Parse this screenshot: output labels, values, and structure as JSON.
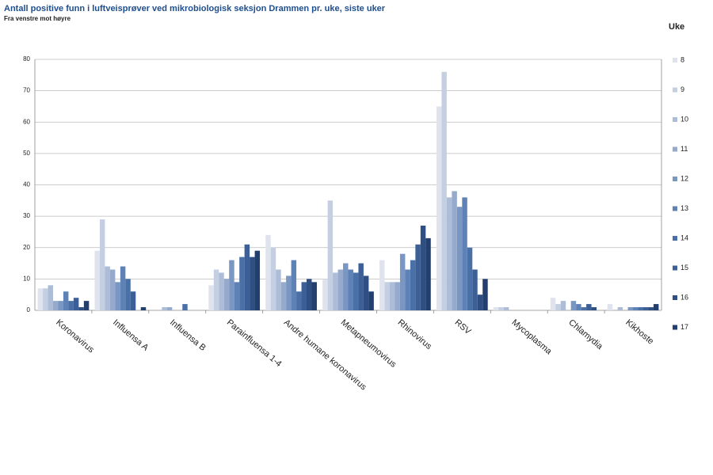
{
  "chart_data": {
    "type": "bar",
    "title": "Antall positive funn i luftveisprøver ved mikrobiologisk seksjon Drammen pr. uke, siste uker",
    "subtitle": "Fra venstre mot høyre",
    "legend_title": "Uke",
    "legend": "right",
    "grid": true,
    "categories": [
      "Koronavirus",
      "Influensa A",
      "Influensa B",
      "Parainfluensa 1-4",
      "Andre humane koronavirus",
      "Metapneumovirus",
      "Rhinovirus",
      "RSV",
      "Mycoplasma",
      "Chlamydia",
      "Kikhoste"
    ],
    "ylim": [
      0,
      80
    ],
    "yticks": [
      0,
      10,
      20,
      30,
      40,
      50,
      60,
      70,
      80
    ],
    "series": [
      {
        "name": "8",
        "color": "#dfe3ee",
        "values": [
          7,
          19,
          0,
          8,
          24,
          10,
          16,
          65,
          1,
          4,
          2
        ]
      },
      {
        "name": "9",
        "color": "#c5cfe2",
        "values": [
          7,
          29,
          0,
          13,
          20,
          35,
          9,
          76,
          1,
          2,
          0
        ]
      },
      {
        "name": "10",
        "color": "#adbdd8",
        "values": [
          8,
          14,
          1,
          12,
          13,
          12,
          9,
          36,
          1,
          3,
          1
        ]
      },
      {
        "name": "11",
        "color": "#95aacd",
        "values": [
          3,
          13,
          1,
          10,
          9,
          13,
          9,
          38,
          0,
          0,
          0
        ]
      },
      {
        "name": "12",
        "color": "#7a96c2",
        "values": [
          3,
          9,
          0,
          16,
          11,
          15,
          18,
          33,
          0,
          3,
          1
        ]
      },
      {
        "name": "13",
        "color": "#5f82b6",
        "values": [
          6,
          14,
          0,
          9,
          16,
          13,
          13,
          36,
          0,
          2,
          1
        ]
      },
      {
        "name": "14",
        "color": "#4a70a8",
        "values": [
          3,
          10,
          2,
          17,
          6,
          12,
          16,
          20,
          0,
          1,
          1
        ]
      },
      {
        "name": "15",
        "color": "#3b5f96",
        "values": [
          4,
          6,
          0,
          21,
          9,
          15,
          21,
          13,
          0,
          2,
          1
        ]
      },
      {
        "name": "16",
        "color": "#2f4f82",
        "values": [
          1,
          0,
          0,
          17,
          10,
          11,
          27,
          5,
          0,
          1,
          1
        ]
      },
      {
        "name": "17",
        "color": "#233f6e",
        "values": [
          3,
          1,
          0,
          19,
          9,
          6,
          23,
          10,
          0,
          0,
          2
        ]
      }
    ]
  }
}
